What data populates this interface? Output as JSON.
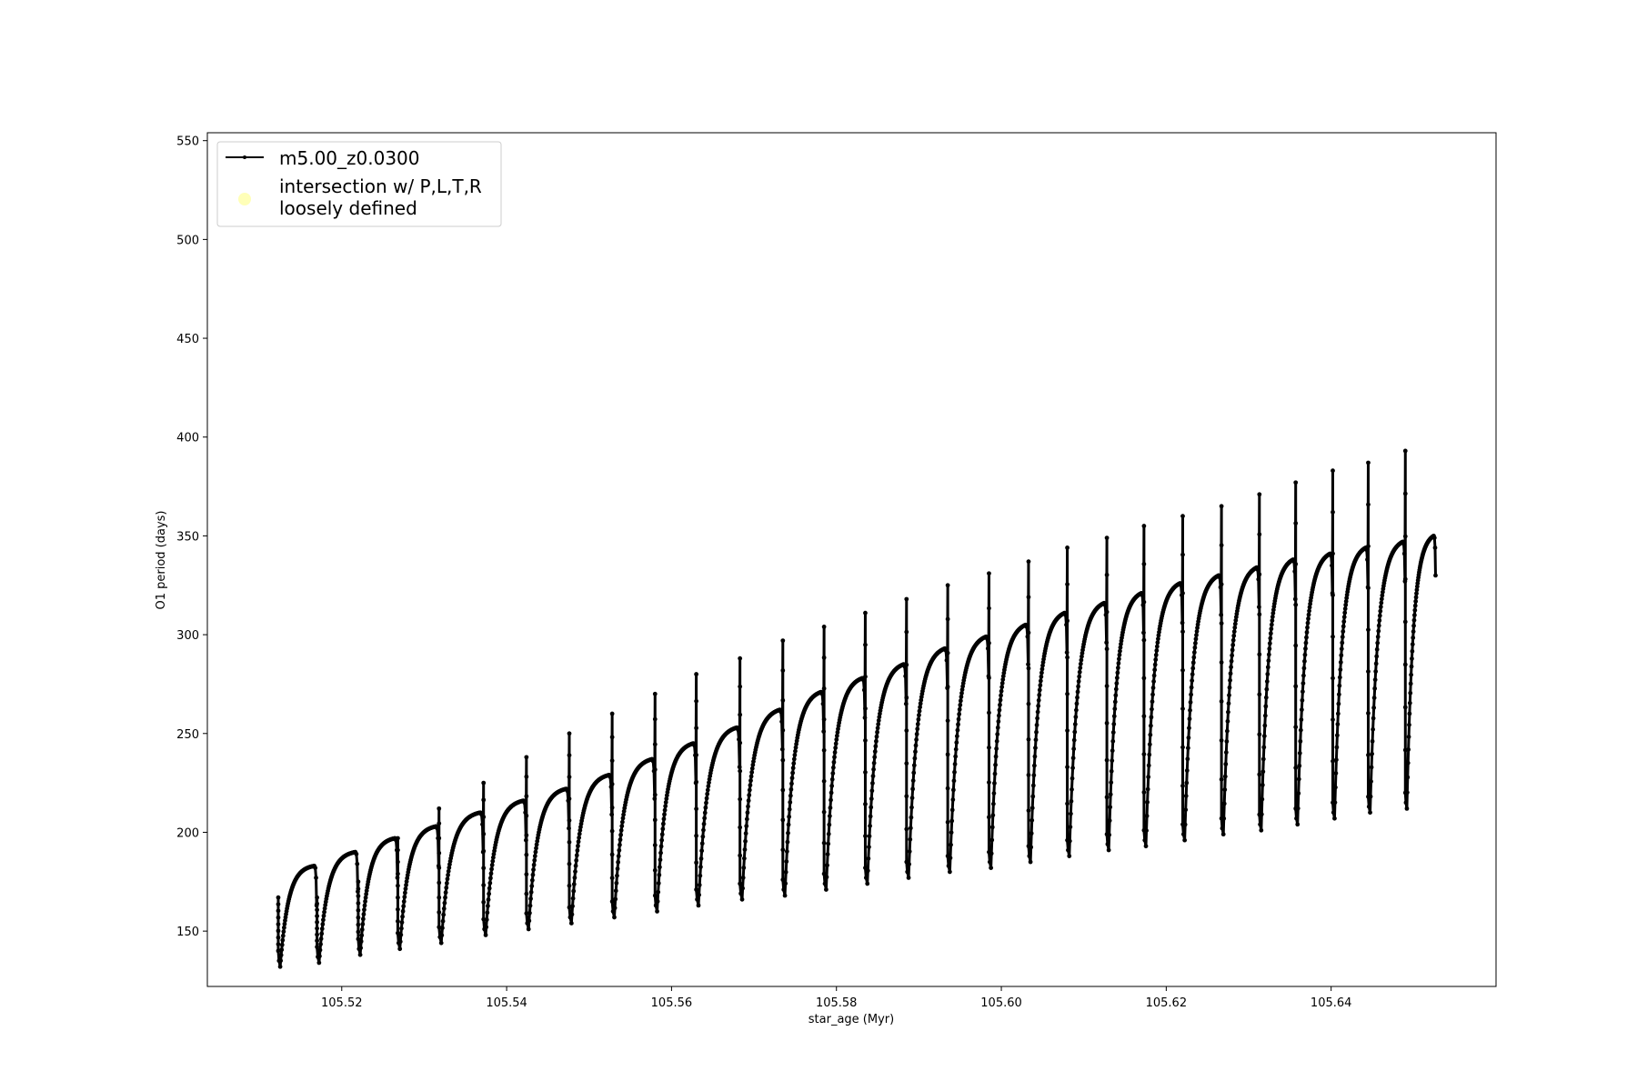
{
  "chart_data": {
    "type": "line",
    "title": "",
    "xlabel": "star_age (Myr)",
    "ylabel": "O1 period (days)",
    "xlim": [
      105.5037,
      105.66
    ],
    "ylim": [
      122,
      554
    ],
    "xticks": [
      105.52,
      105.54,
      105.56,
      105.58,
      105.6,
      105.62,
      105.64
    ],
    "xtick_labels": [
      "105.52",
      "105.54",
      "105.56",
      "105.58",
      "105.60",
      "105.62",
      "105.64"
    ],
    "yticks": [
      150,
      200,
      250,
      300,
      350,
      400,
      450,
      500,
      550
    ],
    "ytick_labels": [
      "150",
      "200",
      "250",
      "300",
      "350",
      "400",
      "450",
      "500",
      "550"
    ],
    "grid": false,
    "legend_position": "top-left",
    "series": [
      {
        "name": "m5.00_z0.0300",
        "color": "#000000",
        "marker": "dot",
        "cycles": [
          {
            "start": 105.5123,
            "end": 105.517,
            "spike": 167,
            "min": 132,
            "plateau": 183
          },
          {
            "start": 105.517,
            "end": 105.522,
            "spike": 167,
            "min": 134,
            "plateau": 190
          },
          {
            "start": 105.522,
            "end": 105.5268,
            "spike": 175,
            "min": 138,
            "plateau": 197
          },
          {
            "start": 105.5268,
            "end": 105.5318,
            "spike": 197,
            "min": 141,
            "plateau": 203
          },
          {
            "start": 105.5318,
            "end": 105.5372,
            "spike": 212,
            "min": 144,
            "plateau": 210
          },
          {
            "start": 105.5372,
            "end": 105.5424,
            "spike": 225,
            "min": 148,
            "plateau": 216
          },
          {
            "start": 105.5424,
            "end": 105.5476,
            "spike": 238,
            "min": 151,
            "plateau": 222
          },
          {
            "start": 105.5476,
            "end": 105.5528,
            "spike": 250,
            "min": 154,
            "plateau": 229
          },
          {
            "start": 105.5528,
            "end": 105.558,
            "spike": 260,
            "min": 157,
            "plateau": 237
          },
          {
            "start": 105.558,
            "end": 105.563,
            "spike": 270,
            "min": 160,
            "plateau": 245
          },
          {
            "start": 105.563,
            "end": 105.5683,
            "spike": 280,
            "min": 163,
            "plateau": 253
          },
          {
            "start": 105.5683,
            "end": 105.5735,
            "spike": 288,
            "min": 166,
            "plateau": 262
          },
          {
            "start": 105.5735,
            "end": 105.5785,
            "spike": 297,
            "min": 168,
            "plateau": 271
          },
          {
            "start": 105.5785,
            "end": 105.5835,
            "spike": 304,
            "min": 171,
            "plateau": 278
          },
          {
            "start": 105.5835,
            "end": 105.5885,
            "spike": 311,
            "min": 174,
            "plateau": 285
          },
          {
            "start": 105.5885,
            "end": 105.5935,
            "spike": 318,
            "min": 177,
            "plateau": 293
          },
          {
            "start": 105.5935,
            "end": 105.5985,
            "spike": 325,
            "min": 180,
            "plateau": 299
          },
          {
            "start": 105.5985,
            "end": 105.6033,
            "spike": 331,
            "min": 182,
            "plateau": 305
          },
          {
            "start": 105.6033,
            "end": 105.608,
            "spike": 337,
            "min": 185,
            "plateau": 311
          },
          {
            "start": 105.608,
            "end": 105.6128,
            "spike": 344,
            "min": 188,
            "plateau": 316
          },
          {
            "start": 105.6128,
            "end": 105.6173,
            "spike": 349,
            "min": 191,
            "plateau": 321
          },
          {
            "start": 105.6173,
            "end": 105.622,
            "spike": 355,
            "min": 193,
            "plateau": 326
          },
          {
            "start": 105.622,
            "end": 105.6267,
            "spike": 360,
            "min": 196,
            "plateau": 330
          },
          {
            "start": 105.6267,
            "end": 105.6313,
            "spike": 365,
            "min": 199,
            "plateau": 334
          },
          {
            "start": 105.6313,
            "end": 105.6357,
            "spike": 371,
            "min": 201,
            "plateau": 338
          },
          {
            "start": 105.6357,
            "end": 105.6402,
            "spike": 377,
            "min": 204,
            "plateau": 341
          },
          {
            "start": 105.6402,
            "end": 105.6445,
            "spike": 383,
            "min": 207,
            "plateau": 344
          },
          {
            "start": 105.6445,
            "end": 105.649,
            "spike": 387,
            "min": 210,
            "plateau": 347
          },
          {
            "start": 105.649,
            "end": 105.6527,
            "spike": 393,
            "min": 212,
            "plateau": 350
          }
        ]
      }
    ],
    "legend": {
      "entries": [
        {
          "label": "m5.00_z0.0300",
          "kind": "line",
          "color": "#000000"
        },
        {
          "label_line1": "intersection w/ P,L,T,R",
          "label_line2": "loosely defined",
          "kind": "marker",
          "color": "#ffffb0"
        }
      ]
    }
  }
}
